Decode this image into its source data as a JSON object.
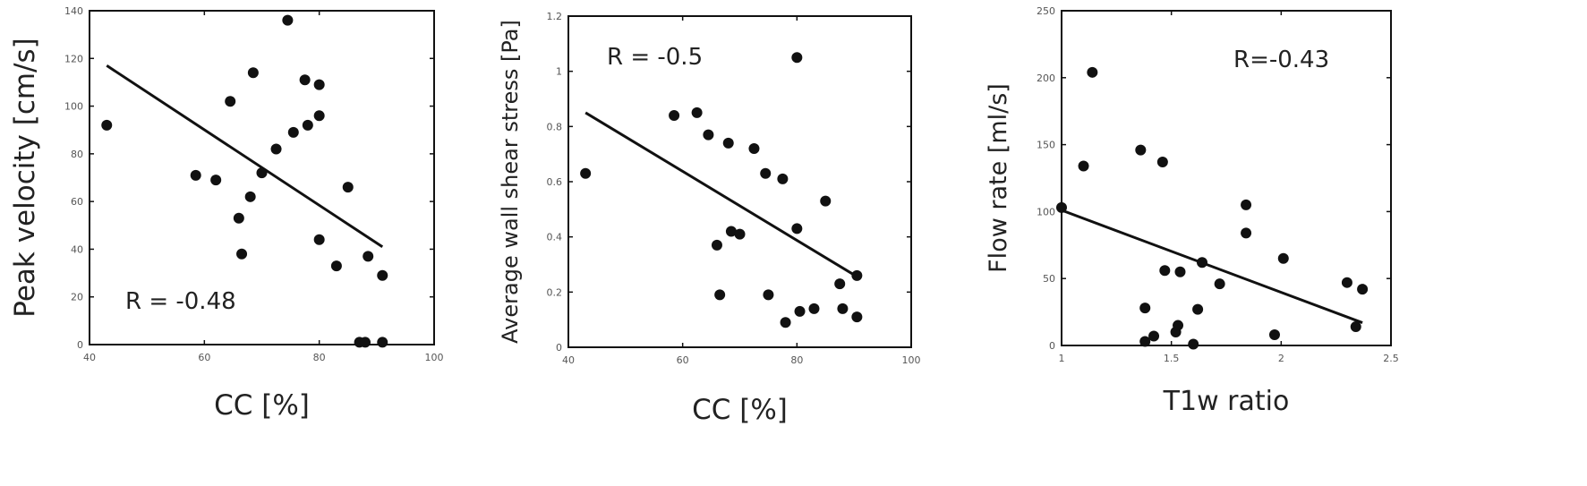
{
  "chart_data": [
    {
      "type": "scatter",
      "xlabel": "CC [%]",
      "ylabel": "Peak velocity [cm/s]",
      "xlim": [
        40,
        100
      ],
      "ylim": [
        0,
        140
      ],
      "xticks": [
        40,
        60,
        80,
        100
      ],
      "yticks": [
        0,
        20,
        40,
        60,
        80,
        100,
        120,
        140
      ],
      "annotation": "R = -0.48",
      "points": [
        [
          43,
          92
        ],
        [
          58.5,
          71
        ],
        [
          62,
          69
        ],
        [
          64.5,
          102
        ],
        [
          66,
          53
        ],
        [
          66.5,
          38
        ],
        [
          68,
          62
        ],
        [
          68.5,
          114
        ],
        [
          70,
          72
        ],
        [
          72.5,
          82
        ],
        [
          74.5,
          136
        ],
        [
          75.5,
          89
        ],
        [
          77.5,
          111
        ],
        [
          78,
          92
        ],
        [
          80,
          109
        ],
        [
          80,
          96
        ],
        [
          80,
          44
        ],
        [
          83,
          33
        ],
        [
          85,
          66
        ],
        [
          87,
          1
        ],
        [
          88,
          1
        ],
        [
          88.5,
          37
        ],
        [
          91,
          1
        ],
        [
          91,
          29
        ]
      ],
      "fit": [
        [
          43,
          117
        ],
        [
          91,
          41
        ]
      ]
    },
    {
      "type": "scatter",
      "xlabel": "CC [%]",
      "ylabel": "Average wall shear stress [Pa]",
      "xlim": [
        40,
        100
      ],
      "ylim": [
        0,
        1.2
      ],
      "xticks": [
        40,
        60,
        80,
        100
      ],
      "yticks": [
        0,
        0.2,
        0.4,
        0.6,
        0.8,
        1,
        1.2
      ],
      "annotation": "R = -0.5",
      "points": [
        [
          43,
          0.63
        ],
        [
          58.5,
          0.84
        ],
        [
          62.5,
          0.85
        ],
        [
          64.5,
          0.77
        ],
        [
          66,
          0.37
        ],
        [
          66.5,
          0.19
        ],
        [
          68,
          0.74
        ],
        [
          68.5,
          0.42
        ],
        [
          70,
          0.41
        ],
        [
          72.5,
          0.72
        ],
        [
          74.5,
          0.63
        ],
        [
          75,
          0.19
        ],
        [
          77.5,
          0.61
        ],
        [
          78,
          0.09
        ],
        [
          80,
          1.05
        ],
        [
          80,
          0.43
        ],
        [
          80.5,
          0.13
        ],
        [
          83,
          0.14
        ],
        [
          85,
          0.53
        ],
        [
          87.5,
          0.23
        ],
        [
          88,
          0.14
        ],
        [
          90.5,
          0.26
        ],
        [
          90.5,
          0.11
        ]
      ],
      "fit": [
        [
          43,
          0.85
        ],
        [
          91,
          0.25
        ]
      ]
    },
    {
      "type": "scatter",
      "xlabel": "T1w ratio",
      "ylabel": "Flow rate [ml/s]",
      "xlim": [
        1,
        2.5
      ],
      "ylim": [
        0,
        250
      ],
      "xticks": [
        1,
        1.5,
        2,
        2.5
      ],
      "yticks": [
        0,
        50,
        100,
        150,
        200,
        250
      ],
      "annotation": "R=-0.43",
      "points": [
        [
          1,
          103
        ],
        [
          1.1,
          134
        ],
        [
          1.14,
          204
        ],
        [
          1.36,
          146
        ],
        [
          1.38,
          28
        ],
        [
          1.38,
          3
        ],
        [
          1.42,
          7
        ],
        [
          1.46,
          137
        ],
        [
          1.47,
          56
        ],
        [
          1.52,
          10
        ],
        [
          1.53,
          15
        ],
        [
          1.54,
          55
        ],
        [
          1.6,
          1
        ],
        [
          1.62,
          27
        ],
        [
          1.64,
          62
        ],
        [
          1.72,
          46
        ],
        [
          1.84,
          105
        ],
        [
          1.84,
          84
        ],
        [
          1.97,
          8
        ],
        [
          2.01,
          65
        ],
        [
          2.3,
          47
        ],
        [
          2.34,
          14
        ],
        [
          2.37,
          42
        ]
      ],
      "fit": [
        [
          1,
          101
        ],
        [
          2.37,
          17
        ]
      ]
    }
  ]
}
